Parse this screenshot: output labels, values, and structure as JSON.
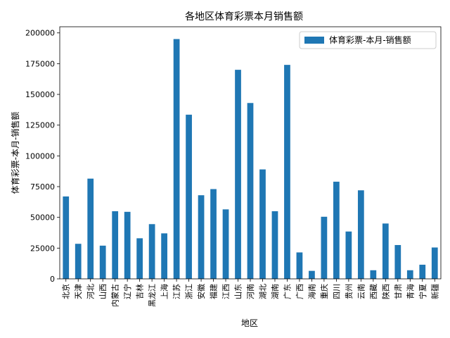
{
  "chart_data": {
    "type": "bar",
    "title": "各地区体育彩票本月销售额",
    "xlabel": "地区",
    "ylabel": "体育彩票-本月-销售额",
    "ylim": [
      0,
      205000
    ],
    "yticks": [
      0,
      25000,
      50000,
      75000,
      100000,
      125000,
      150000,
      175000,
      200000
    ],
    "grid": false,
    "legend_position": "top-right",
    "categories": [
      "北京",
      "天津",
      "河北",
      "山西",
      "内蒙古",
      "辽宁",
      "吉林",
      "黑龙江",
      "上海",
      "江苏",
      "浙江",
      "安徽",
      "福建",
      "江西",
      "山东",
      "河南",
      "湖北",
      "湖南",
      "广东",
      "广西",
      "海南",
      "重庆",
      "四川",
      "贵州",
      "云南",
      "西藏",
      "陕西",
      "甘肃",
      "青海",
      "宁夏",
      "新疆"
    ],
    "series": [
      {
        "name": "体育彩票-本月-销售额",
        "color": "#1f77b4",
        "values": [
          67000,
          28500,
          81500,
          27000,
          55000,
          54500,
          33000,
          44500,
          37000,
          195000,
          133500,
          68000,
          73000,
          56500,
          170000,
          143000,
          89000,
          55000,
          174000,
          21500,
          6500,
          50500,
          79000,
          38500,
          72000,
          7000,
          45000,
          27500,
          7000,
          11500,
          25500
        ]
      }
    ]
  }
}
